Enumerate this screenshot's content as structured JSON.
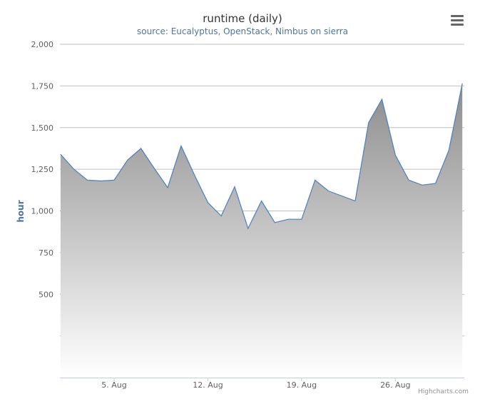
{
  "chart_data": {
    "type": "area",
    "title": "runtime (daily)",
    "subtitle": "source: Eucalyptus, OpenStack, Nimbus on sierra",
    "ylabel": "hour",
    "xlabel": "",
    "ylim": [
      0,
      2000
    ],
    "y_ticks": [
      500,
      750,
      1000,
      1250,
      1500,
      1750,
      2000
    ],
    "y_tick_labels": [
      "500",
      "750",
      "1,000",
      "1,250",
      "1,500",
      "1,750",
      "2,000"
    ],
    "x_range": [
      "2011-08-01",
      "2011-08-31"
    ],
    "x_ticks": [
      "2011-08-05",
      "2011-08-12",
      "2011-08-19",
      "2011-08-26"
    ],
    "x_tick_labels": [
      "5. Aug",
      "12. Aug",
      "19. Aug",
      "26. Aug"
    ],
    "grid": true,
    "x": [
      "2011-08-01",
      "2011-08-02",
      "2011-08-03",
      "2011-08-04",
      "2011-08-05",
      "2011-08-06",
      "2011-08-07",
      "2011-08-08",
      "2011-08-09",
      "2011-08-10",
      "2011-08-11",
      "2011-08-12",
      "2011-08-13",
      "2011-08-14",
      "2011-08-15",
      "2011-08-16",
      "2011-08-17",
      "2011-08-18",
      "2011-08-19",
      "2011-08-20",
      "2011-08-21",
      "2011-08-22",
      "2011-08-23",
      "2011-08-24",
      "2011-08-25",
      "2011-08-26",
      "2011-08-27",
      "2011-08-28",
      "2011-08-29",
      "2011-08-30",
      "2011-08-31"
    ],
    "values": [
      1340,
      1250,
      1185,
      1180,
      1185,
      1305,
      1375,
      1255,
      1140,
      1390,
      1215,
      1050,
      970,
      1145,
      895,
      1060,
      930,
      950,
      950,
      1185,
      1120,
      1090,
      1060,
      1530,
      1670,
      1335,
      1185,
      1155,
      1165,
      1365,
      1765
    ],
    "colors": {
      "line": "#4a7fc1",
      "area_top": "#8c8c8c",
      "area_bottom": "#ffffff",
      "grid": "#c0c0c0",
      "axis_label": "#4d759e"
    }
  },
  "ui": {
    "credits": "Highcharts.com",
    "menu_icon": "hamburger-menu-icon"
  }
}
